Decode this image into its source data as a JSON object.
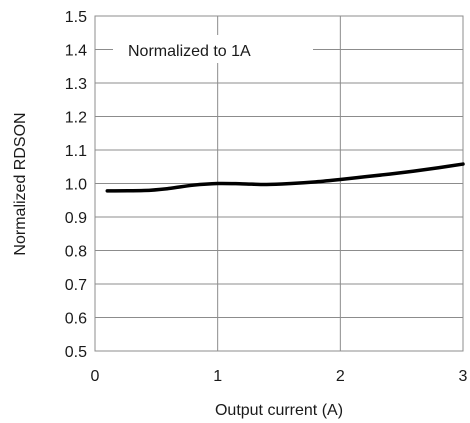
{
  "chart_data": {
    "type": "line",
    "title": "",
    "xlabel": "Output current (A)",
    "ylabel": "Normalized RDSON",
    "xlim": [
      0,
      3
    ],
    "ylim": [
      0.5,
      1.5
    ],
    "x_ticks": [
      0,
      1,
      2,
      3
    ],
    "x_tick_labels": [
      "0",
      "1",
      "2",
      "3"
    ],
    "y_ticks": [
      0.5,
      0.6,
      0.7,
      0.8,
      0.9,
      1.0,
      1.1,
      1.2,
      1.3,
      1.4,
      1.5
    ],
    "y_tick_labels": [
      "0.5",
      "0.6",
      "0.7",
      "0.8",
      "0.9",
      "1.0",
      "1.1",
      "1.2",
      "1.3",
      "1.4",
      "1.5"
    ],
    "grid": true,
    "annotation": "Normalized to 1A",
    "series": [
      {
        "x": [
          0.1,
          0.4,
          0.6,
          0.8,
          1.0,
          1.2,
          1.4,
          1.6,
          1.8,
          2.0,
          2.2,
          2.4,
          2.6,
          2.8,
          3.0
        ],
        "y": [
          0.978,
          0.979,
          0.985,
          0.995,
          1.0,
          0.999,
          0.997,
          1.0,
          1.005,
          1.012,
          1.02,
          1.028,
          1.037,
          1.047,
          1.058
        ],
        "color": "#000000"
      }
    ]
  }
}
